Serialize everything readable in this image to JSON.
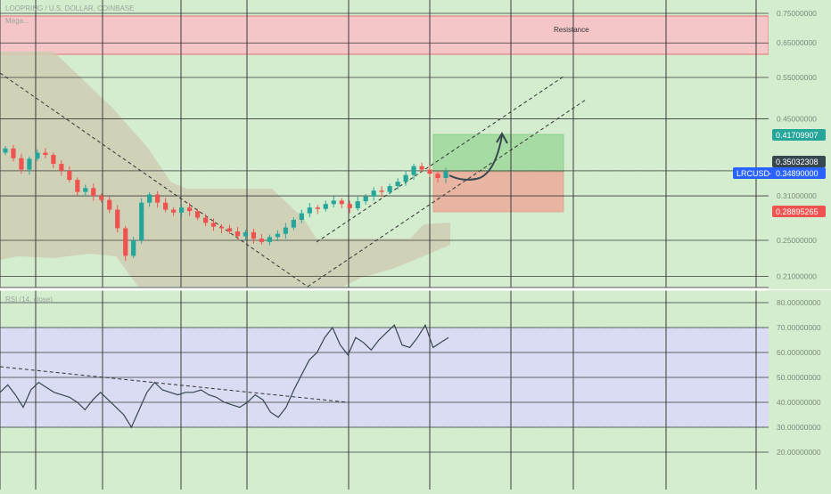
{
  "window": {
    "symbol_line": "LOOPRING / U.S. DOLLAR, COINBASE",
    "subtitle": "Mega...",
    "indicator_label": "RSI (14, close)"
  },
  "theme": {
    "background": "#d4edcf",
    "up_color": "#26a69a",
    "down_color": "#ef5350",
    "resistance_fill": "#f4c6c8",
    "ichimoku_cloud": "#cfcdb4",
    "tp_box": "#a6dca3",
    "sl_box": "#e8b5a3",
    "rsi_band": "#d9dcf2",
    "price_tag_current": "#2962ff"
  },
  "chart_data": [
    {
      "type": "candlestick",
      "title": "",
      "symbol": "LRCUSD",
      "price_axis": {
        "range": [
          0.205,
          0.77
        ],
        "ticks": [
          "0.75000000",
          "0.65000000",
          "0.55000000",
          "0.45000000",
          "0.35000000",
          "0.31000000",
          "0.25000000",
          "0.21000000"
        ]
      },
      "annotations": {
        "resistance_zone": {
          "label": "Resistance",
          "low": 0.61,
          "high": 0.72
        },
        "take_profit": 0.41709907,
        "entry": 0.35032308,
        "stop_loss": 0.28895265,
        "current_price_label": "LRCUSD",
        "current_price": "0.34890000"
      },
      "price_labels": {
        "take_profit": "0.41709907",
        "entry": "0.35032308",
        "stop_loss": "0.28895265"
      },
      "grid": true,
      "closes": [
        0.39,
        0.372,
        0.352,
        0.371,
        0.382,
        0.378,
        0.362,
        0.35,
        0.335,
        0.316,
        0.322,
        0.31,
        0.304,
        0.29,
        0.265,
        0.232,
        0.25,
        0.3,
        0.312,
        0.3,
        0.29,
        0.286,
        0.293,
        0.288,
        0.279,
        0.272,
        0.267,
        0.265,
        0.261,
        0.255,
        0.26,
        0.252,
        0.248,
        0.254,
        0.258,
        0.266,
        0.276,
        0.285,
        0.293,
        0.291,
        0.298,
        0.303,
        0.298,
        0.292,
        0.302,
        0.309,
        0.318,
        0.316,
        0.325,
        0.332,
        0.343,
        0.358,
        0.352,
        0.345,
        0.338,
        0.349
      ]
    },
    {
      "type": "line",
      "title": "",
      "series": [
        {
          "values": [
            44,
            47,
            43,
            38,
            45,
            48,
            46,
            44,
            43,
            42,
            40,
            37,
            41,
            44,
            41,
            38,
            35,
            30,
            37,
            44,
            48,
            45,
            44,
            43,
            44,
            44,
            45,
            43,
            42,
            40,
            39,
            38,
            40,
            43,
            41,
            36,
            34,
            38,
            45,
            51,
            57,
            60,
            66,
            70,
            63,
            59,
            66,
            64,
            61,
            65,
            68,
            71,
            63,
            62,
            66,
            71,
            62,
            64,
            66
          ]
        }
      ],
      "ylim": [
        0,
        80
      ],
      "y_ticks": [
        "80.00000000",
        "70.00000000",
        "60.00000000",
        "50.00000000",
        "40.00000000",
        "30.00000000",
        "20.00000000"
      ],
      "band": [
        30,
        70
      ],
      "grid": true
    }
  ]
}
